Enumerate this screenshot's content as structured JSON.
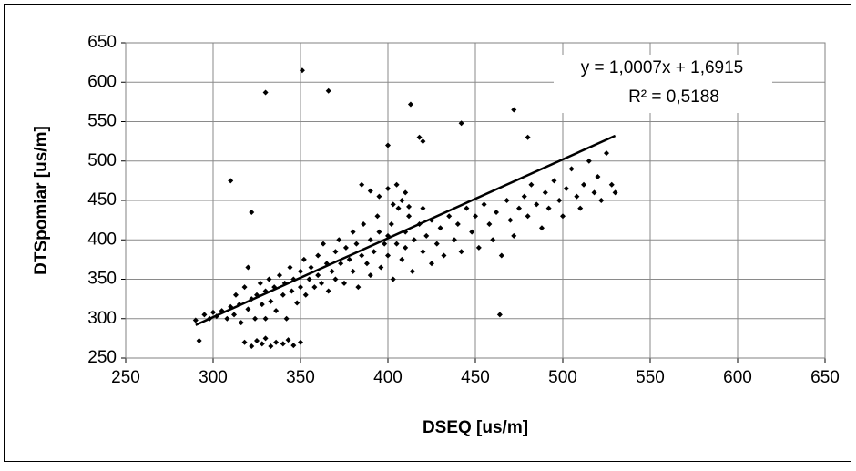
{
  "chart_data": {
    "type": "scatter",
    "x_label": "DSEQ [us/m]",
    "y_label": "DTSpomiar [us/m]",
    "annotations": [
      "y = 1,0007x + 1,6915",
      "R² = 0,5188"
    ],
    "color": "#000000",
    "xlim": [
      250,
      650
    ],
    "xticks": [
      250,
      300,
      350,
      400,
      450,
      500,
      550,
      600,
      650
    ],
    "ylim": [
      250,
      650
    ],
    "yticks": [
      250,
      300,
      350,
      400,
      450,
      500,
      550,
      600,
      650
    ],
    "grid": true,
    "trendline": {
      "x": [
        290,
        530
      ],
      "y": [
        291.9,
        532.1
      ]
    },
    "x": [
      290,
      292,
      295,
      298,
      300,
      302,
      305,
      308,
      310,
      312,
      313,
      315,
      316,
      318,
      320,
      320,
      322,
      324,
      325,
      327,
      328,
      330,
      330,
      332,
      333,
      335,
      336,
      338,
      340,
      341,
      342,
      344,
      345,
      346,
      348,
      350,
      350,
      352,
      353,
      355,
      356,
      358,
      360,
      360,
      362,
      363,
      365,
      366,
      368,
      370,
      370,
      372,
      373,
      375,
      376,
      378,
      380,
      380,
      382,
      383,
      385,
      386,
      388,
      390,
      390,
      392,
      394,
      395,
      396,
      398,
      400,
      400,
      402,
      403,
      405,
      406,
      408,
      410,
      410,
      412,
      414,
      415,
      418,
      420,
      420,
      422,
      425,
      425,
      428,
      430,
      432,
      435,
      438,
      440,
      442,
      445,
      448,
      450,
      452,
      455,
      458,
      460,
      462,
      465,
      468,
      470,
      472,
      475,
      478,
      480,
      482,
      485,
      488,
      490,
      492,
      495,
      498,
      500,
      502,
      505,
      508,
      510,
      512,
      515,
      518,
      520,
      522,
      525,
      528,
      530,
      318,
      322,
      325,
      328,
      330,
      333,
      336,
      340,
      343,
      346,
      350,
      395,
      400,
      403,
      405,
      408,
      410,
      412,
      385,
      390,
      330,
      351,
      366,
      413,
      442,
      472,
      464,
      310,
      322,
      418,
      420,
      480,
      400
    ],
    "values": [
      298,
      272,
      305,
      300,
      308,
      303,
      310,
      300,
      315,
      305,
      330,
      318,
      295,
      340,
      312,
      365,
      325,
      300,
      330,
      345,
      318,
      335,
      300,
      350,
      322,
      340,
      310,
      355,
      330,
      345,
      300,
      365,
      335,
      350,
      320,
      360,
      340,
      375,
      330,
      350,
      365,
      340,
      380,
      355,
      345,
      395,
      370,
      335,
      360,
      385,
      350,
      400,
      370,
      345,
      390,
      375,
      410,
      360,
      395,
      340,
      380,
      420,
      370,
      400,
      355,
      385,
      430,
      410,
      365,
      395,
      405,
      380,
      420,
      350,
      395,
      440,
      375,
      410,
      390,
      430,
      360,
      400,
      420,
      385,
      440,
      405,
      370,
      425,
      395,
      415,
      380,
      430,
      400,
      420,
      385,
      440,
      410,
      430,
      390,
      445,
      420,
      400,
      435,
      380,
      450,
      425,
      405,
      440,
      455,
      430,
      470,
      445,
      415,
      460,
      440,
      475,
      450,
      430,
      465,
      490,
      455,
      440,
      470,
      500,
      460,
      480,
      450,
      510,
      470,
      460,
      270,
      265,
      272,
      268,
      275,
      265,
      270,
      268,
      273,
      266,
      270,
      455,
      465,
      445,
      470,
      450,
      460,
      442,
      470,
      462,
      587,
      615,
      589,
      572,
      548,
      565,
      305,
      475,
      435,
      530,
      525,
      530,
      520
    ]
  }
}
